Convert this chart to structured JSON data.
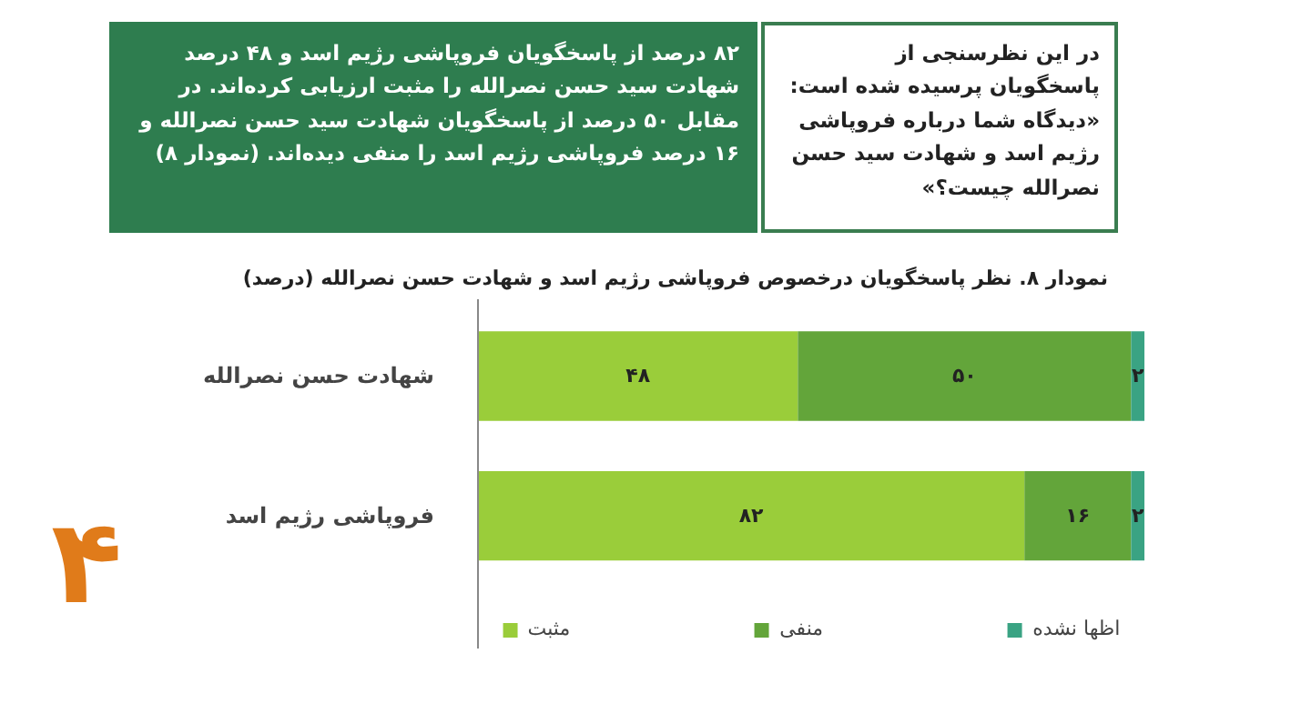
{
  "chart_data": {
    "type": "bar",
    "orientation": "horizontal",
    "stacked": true,
    "title": "نمودار ۸. نظر پاسخگویان درخصوص فروپاشی رژیم اسد و شهادت حسن نصرالله (درصد)",
    "annotations": [
      "در این نظرسنجی از پاسخگویان پرسیده شده است: «دیدگاه شما درباره فروپاشی رژیم اسد و شهادت سید حسن نصرالله چیست؟»",
      "۸۲ درصد از پاسخگویان فروپاشی رژیم اسد و ۴۸ درصد شهادت سید حسن نصرالله را مثبت ارزیابی کرده‌اند. در مقابل ۵۰ درصد از پاسخگویان شهادت سید حسن نصرالله و ۱۶ درصد فروپاشی رژیم اسد را منفی دیده‌اند. (نمودار ۸)",
      "۴"
    ],
    "categories": [
      "شهادت حسن نصرالله",
      "فروپاشی رژیم اسد"
    ],
    "series": [
      {
        "name": "مثبت",
        "color": "#9acd3a",
        "values": [
          48,
          82
        ],
        "value_labels": [
          "۴۸",
          "۸۲"
        ]
      },
      {
        "name": "منفی",
        "color": "#63a53a",
        "values": [
          50,
          16
        ],
        "value_labels": [
          "۵۰",
          "۱۶"
        ]
      },
      {
        "name": "اظها نشده",
        "color": "#3aa383",
        "values": [
          2,
          2
        ],
        "value_labels": [
          "۲",
          "۲"
        ]
      }
    ],
    "legend": "bottom",
    "tick_labels": "y",
    "grid": false
  }
}
